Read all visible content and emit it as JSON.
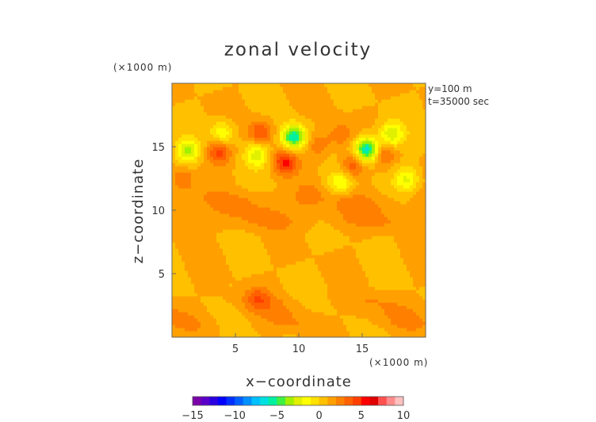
{
  "chart_data": {
    "type": "heatmap",
    "title": "zonal velocity",
    "xlabel": "x−coordinate",
    "ylabel": "z−coordinate",
    "x_unit_label": "(×1000 m)",
    "y_unit_label": "(×1000 m)",
    "annotations": [
      "y=100 m",
      "t=35000 sec"
    ],
    "xlim": [
      0,
      20
    ],
    "ylim": [
      0,
      20
    ],
    "x_ticks": [
      5,
      10,
      15
    ],
    "y_ticks": [
      5,
      10,
      15
    ],
    "colorbar": {
      "min": -15,
      "max": 10,
      "ticks": [
        -15,
        -10,
        -5,
        0,
        5,
        10
      ],
      "tick_labels": [
        "−15",
        "−10",
        "−5",
        "0",
        "5",
        "10"
      ],
      "colors": [
        "#7a00a8",
        "#5a00c8",
        "#2a00e0",
        "#0000ff",
        "#0030ff",
        "#0060ff",
        "#0090ff",
        "#00c0ff",
        "#00e0e0",
        "#00f0a0",
        "#40f040",
        "#a0f000",
        "#e0f000",
        "#ffff00",
        "#ffe000",
        "#ffc000",
        "#ffa000",
        "#ff8000",
        "#ff6000",
        "#ff4000",
        "#ff0000",
        "#e00000",
        "#ff5050",
        "#ff8c8c",
        "#ffc0c0"
      ]
    },
    "background_value": 1,
    "features": [
      {
        "x": 9.6,
        "z": 15.8,
        "value": -6
      },
      {
        "x": 15.4,
        "z": 14.8,
        "value": -7
      },
      {
        "x": 17.3,
        "z": 16.0,
        "value": -3
      },
      {
        "x": 1.2,
        "z": 14.7,
        "value": -3
      },
      {
        "x": 4.0,
        "z": 16.1,
        "value": -2
      },
      {
        "x": 6.7,
        "z": 14.4,
        "value": -2.5
      },
      {
        "x": 13.3,
        "z": 12.2,
        "value": -2
      },
      {
        "x": 18.5,
        "z": 12.5,
        "value": -2
      },
      {
        "x": 3.7,
        "z": 14.6,
        "value": 4.5
      },
      {
        "x": 7.0,
        "z": 16.2,
        "value": 4
      },
      {
        "x": 8.9,
        "z": 13.8,
        "value": 5
      },
      {
        "x": 11.6,
        "z": 15.2,
        "value": 3
      },
      {
        "x": 14.3,
        "z": 13.6,
        "value": 4
      },
      {
        "x": 16.6,
        "z": 14.5,
        "value": 3.5
      },
      {
        "x": 0.8,
        "z": 12.4,
        "value": 3
      },
      {
        "x": 13.3,
        "z": 16.0,
        "value": 3
      },
      {
        "x": 6.8,
        "z": 3.1,
        "value": 3
      },
      {
        "x": 10.7,
        "z": 11.3,
        "value": 2.5
      }
    ],
    "bands": [
      {
        "z_from": 0,
        "z_to": 4.0,
        "value": 2,
        "x_weight": 0.5
      },
      {
        "z_from": 8.0,
        "z_to": 12.0,
        "value": 2.2,
        "x_weight": 0.3
      }
    ]
  }
}
